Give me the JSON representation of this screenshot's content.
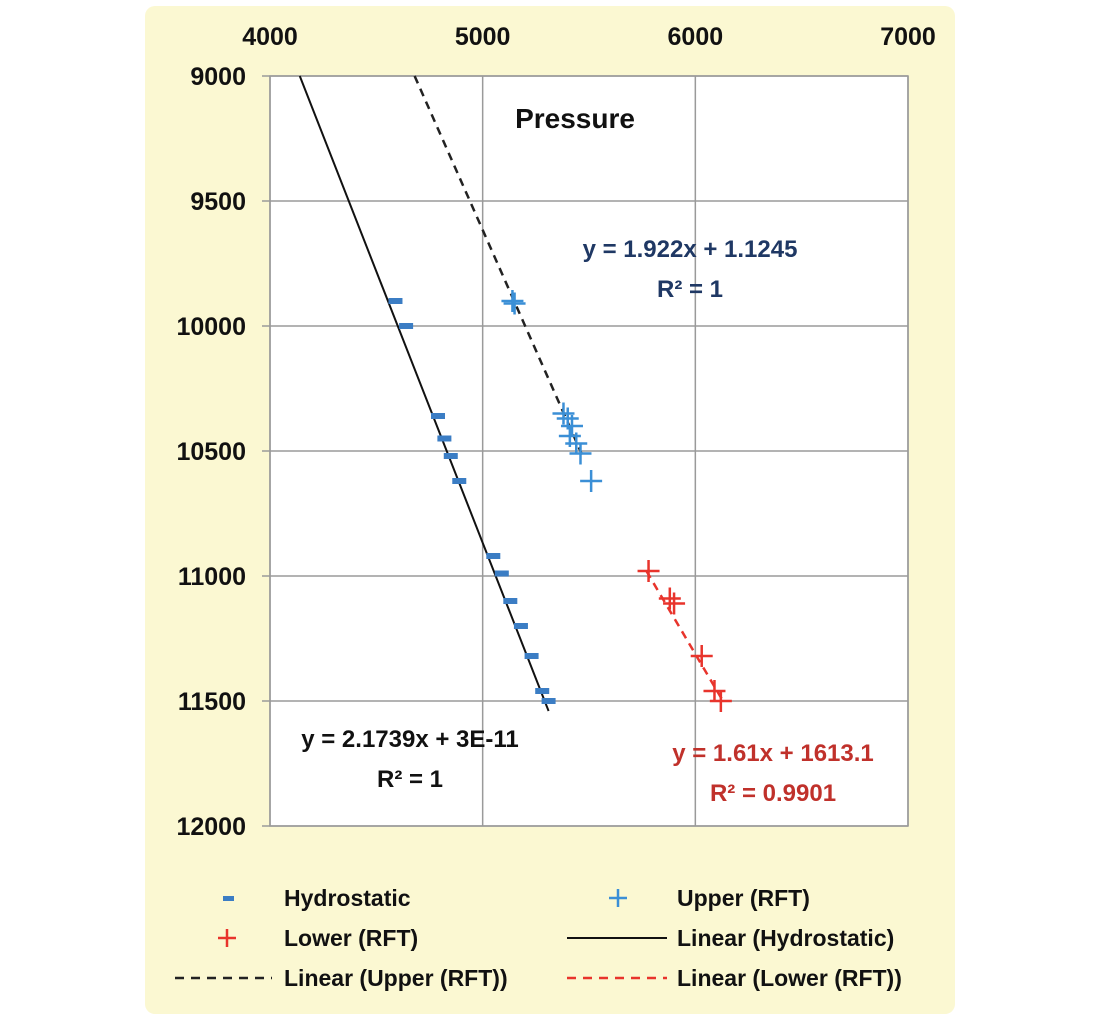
{
  "chart_data": {
    "type": "scatter",
    "title": "Pressure",
    "xlabel": "",
    "ylabel": "",
    "x_axis_position": "top",
    "y_axis_reversed": true,
    "xlim": [
      4000,
      7000
    ],
    "ylim": [
      9000,
      12000
    ],
    "x_ticks": [
      "4000",
      "5000",
      "6000",
      "7000"
    ],
    "y_ticks": [
      "9000",
      "9500",
      "10000",
      "10500",
      "11000",
      "11500",
      "12000"
    ],
    "grid": true,
    "legend_position": "bottom",
    "series": [
      {
        "name": "Hydrostatic",
        "marker": "dash",
        "color": "#3b7dc4",
        "points": [
          [
            4590,
            9900
          ],
          [
            4640,
            10000
          ],
          [
            4790,
            10360
          ],
          [
            4820,
            10450
          ],
          [
            4850,
            10520
          ],
          [
            4890,
            10620
          ],
          [
            5050,
            10920
          ],
          [
            5090,
            10990
          ],
          [
            5130,
            11100
          ],
          [
            5180,
            11200
          ],
          [
            5230,
            11320
          ],
          [
            5280,
            11460
          ],
          [
            5310,
            11500
          ]
        ]
      },
      {
        "name": "Upper  (RFT)",
        "marker": "plus",
        "color": "#3b8fd6",
        "points": [
          [
            5140,
            9900
          ],
          [
            5150,
            9910
          ],
          [
            5380,
            10350
          ],
          [
            5400,
            10370
          ],
          [
            5420,
            10400
          ],
          [
            5410,
            10440
          ],
          [
            5440,
            10470
          ],
          [
            5460,
            10510
          ],
          [
            5510,
            10620
          ]
        ]
      },
      {
        "name": "Lower  (RFT)",
        "marker": "plus",
        "color": "#e8342c",
        "points": [
          [
            5780,
            10980
          ],
          [
            5880,
            11090
          ],
          [
            5900,
            11110
          ],
          [
            6030,
            11320
          ],
          [
            6090,
            11460
          ],
          [
            6120,
            11500
          ]
        ]
      },
      {
        "name": "Linear (Hydrostatic)",
        "line": "solid",
        "color": "#111111",
        "x": [
          4140,
          5310
        ],
        "y": [
          9000,
          11540
        ]
      },
      {
        "name": "Linear (Upper (RFT))",
        "line": "dashed",
        "color": "#222222",
        "x": [
          4680,
          5470
        ],
        "y": [
          9000,
          10520
        ]
      },
      {
        "name": "Linear (Lower (RFT))",
        "line": "dashed",
        "color": "#e8342c",
        "x": [
          5770,
          6130
        ],
        "y": [
          10980,
          11500
        ]
      }
    ],
    "annotations": [
      {
        "text": "y = 1.922x + 1.1245",
        "color": "#1f3864"
      },
      {
        "text": "R² = 1",
        "color": "#1f3864"
      },
      {
        "text": "y = 2.1739x + 3E-11",
        "color": "#111111"
      },
      {
        "text": "R² = 1",
        "color": "#111111"
      },
      {
        "text": "y = 1.61x + 1613.1",
        "color": "#c0312b"
      },
      {
        "text": "R² = 0.9901",
        "color": "#c0312b"
      }
    ]
  }
}
